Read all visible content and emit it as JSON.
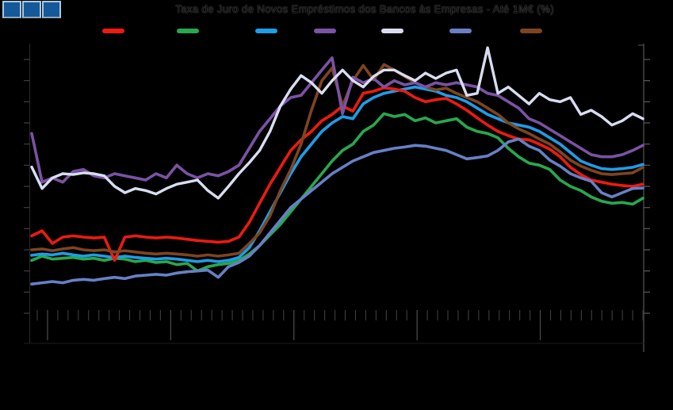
{
  "title": "Taxa de Juro de Novos Empréstimos dos Bancos às Empresas - Até 1M€ (%)",
  "logo": {
    "square_count": 3,
    "fill": "#15599B",
    "border": "#ADC8DF"
  },
  "legend": {
    "labels_visible": false,
    "items": [
      {
        "label": "",
        "color": "#EE1A10",
        "color_name": "red",
        "x": 129
      },
      {
        "label": "",
        "color": "#27A84F",
        "color_name": "green",
        "x": 223
      },
      {
        "label": "",
        "color": "#1E9DE8",
        "color_name": "cyan",
        "x": 322
      },
      {
        "label": "",
        "color": "#7B52A5",
        "color_name": "purple",
        "x": 396
      },
      {
        "label": "",
        "color": "#D8DEF0",
        "color_name": "lavender",
        "x": 481
      },
      {
        "label": "",
        "color": "#6780C6",
        "color_name": "steel",
        "x": 567
      },
      {
        "label": "",
        "color": "#7E4420",
        "color_name": "brown",
        "x": 656
      }
    ]
  },
  "chart_data": {
    "type": "line",
    "title": "Taxa de Juro de Novos Empréstimos dos Bancos às Empresas - Até 1M€ (%)",
    "n_points": 60,
    "x_axis": {
      "minor_tick_every_points": 1,
      "major_tick_every_points": 12,
      "first_major_point": 1,
      "tick_labels_visible": false
    },
    "y_axis": {
      "min": 1.0,
      "max": 7.5,
      "tick_step": 0.5,
      "tick_labels_visible": false
    },
    "grid": false,
    "legend_position": "top",
    "series": [
      {
        "name": "",
        "color_name": "green",
        "color": "#27A84F",
        "values": [
          2.25,
          2.35,
          2.28,
          2.3,
          2.32,
          2.28,
          2.3,
          2.25,
          2.3,
          2.28,
          2.22,
          2.25,
          2.2,
          2.22,
          2.15,
          2.18,
          2.0,
          2.1,
          2.15,
          2.18,
          2.25,
          2.4,
          2.6,
          2.85,
          3.1,
          3.4,
          3.7,
          4.0,
          4.3,
          4.6,
          4.85,
          5.0,
          5.3,
          5.45,
          5.72,
          5.65,
          5.7,
          5.55,
          5.62,
          5.5,
          5.55,
          5.6,
          5.4,
          5.3,
          5.25,
          5.15,
          4.9,
          4.7,
          4.55,
          4.5,
          4.4,
          4.15,
          4.0,
          3.9,
          3.75,
          3.65,
          3.6,
          3.62,
          3.58,
          3.72
        ]
      },
      {
        "name": "",
        "color_name": "cyan",
        "color": "#1E9DE8",
        "values": [
          2.37,
          2.4,
          2.38,
          2.42,
          2.38,
          2.35,
          2.38,
          2.35,
          2.32,
          2.35,
          2.32,
          2.3,
          2.28,
          2.3,
          2.28,
          2.25,
          2.22,
          2.25,
          2.22,
          2.25,
          2.32,
          2.55,
          2.95,
          3.4,
          3.85,
          4.3,
          4.7,
          5.0,
          5.3,
          5.5,
          5.65,
          5.6,
          5.95,
          6.1,
          6.2,
          6.25,
          6.3,
          6.35,
          6.3,
          6.25,
          6.15,
          6.1,
          6.0,
          5.85,
          5.7,
          5.6,
          5.5,
          5.45,
          5.4,
          5.3,
          5.15,
          5.0,
          4.8,
          4.6,
          4.5,
          4.42,
          4.4,
          4.42,
          4.45,
          4.52
        ]
      },
      {
        "name": "",
        "color_name": "red",
        "color": "#EE1A10",
        "values": [
          2.83,
          2.95,
          2.65,
          2.8,
          2.83,
          2.8,
          2.78,
          2.8,
          2.25,
          2.8,
          2.83,
          2.8,
          2.78,
          2.8,
          2.78,
          2.75,
          2.72,
          2.7,
          2.68,
          2.7,
          2.8,
          3.15,
          3.6,
          4.05,
          4.45,
          4.85,
          5.1,
          5.3,
          5.55,
          5.7,
          5.9,
          5.78,
          6.2,
          6.25,
          6.33,
          6.3,
          6.25,
          6.1,
          6.0,
          6.05,
          6.08,
          5.95,
          5.8,
          5.62,
          5.45,
          5.3,
          5.2,
          5.12,
          5.1,
          5.0,
          4.88,
          4.7,
          4.45,
          4.28,
          4.15,
          4.1,
          4.05,
          4.02,
          4.0,
          4.05
        ]
      },
      {
        "name": "",
        "color_name": "brown",
        "color": "#7E4420",
        "values": [
          2.5,
          2.52,
          2.48,
          2.52,
          2.55,
          2.5,
          2.48,
          2.5,
          2.45,
          2.48,
          2.45,
          2.42,
          2.4,
          2.42,
          2.4,
          2.38,
          2.35,
          2.38,
          2.35,
          2.38,
          2.42,
          2.65,
          2.9,
          3.3,
          3.9,
          4.4,
          5.0,
          5.8,
          6.5,
          6.8,
          5.9,
          6.5,
          6.86,
          6.52,
          6.88,
          6.75,
          6.6,
          6.45,
          6.35,
          6.28,
          6.32,
          6.2,
          6.1,
          6.0,
          5.85,
          5.7,
          5.5,
          5.36,
          5.25,
          5.12,
          5.0,
          4.82,
          4.62,
          4.48,
          4.38,
          4.3,
          4.28,
          4.3,
          4.32,
          4.45
        ]
      },
      {
        "name": "",
        "color_name": "steel",
        "color": "#6780C6",
        "values": [
          1.69,
          1.72,
          1.75,
          1.72,
          1.78,
          1.8,
          1.78,
          1.82,
          1.85,
          1.82,
          1.88,
          1.9,
          1.92,
          1.9,
          1.95,
          1.98,
          2.0,
          2.02,
          1.85,
          2.1,
          2.2,
          2.35,
          2.6,
          2.9,
          3.2,
          3.5,
          3.7,
          3.9,
          4.1,
          4.3,
          4.45,
          4.6,
          4.7,
          4.8,
          4.85,
          4.9,
          4.93,
          4.97,
          4.95,
          4.9,
          4.85,
          4.75,
          4.65,
          4.68,
          4.72,
          4.85,
          5.05,
          5.12,
          4.95,
          4.85,
          4.62,
          4.48,
          4.3,
          4.2,
          4.12,
          3.85,
          3.75,
          3.85,
          3.95,
          3.96
        ]
      },
      {
        "name": "",
        "color_name": "purple",
        "color": "#7B52A5",
        "values": [
          5.25,
          4.1,
          4.2,
          4.1,
          4.35,
          4.4,
          4.25,
          4.2,
          4.3,
          4.25,
          4.2,
          4.15,
          4.3,
          4.2,
          4.5,
          4.3,
          4.2,
          4.3,
          4.25,
          4.35,
          4.5,
          4.9,
          5.3,
          5.6,
          5.9,
          6.1,
          6.15,
          6.45,
          6.75,
          7.04,
          5.72,
          6.58,
          6.45,
          6.55,
          6.35,
          6.5,
          6.4,
          6.45,
          6.35,
          6.45,
          6.4,
          6.45,
          6.4,
          6.35,
          6.2,
          6.15,
          6.0,
          5.85,
          5.6,
          5.5,
          5.35,
          5.2,
          5.05,
          4.9,
          4.75,
          4.7,
          4.7,
          4.75,
          4.85,
          4.97
        ]
      },
      {
        "name": "",
        "color_name": "lavender",
        "color": "#D8DEF0",
        "values": [
          4.46,
          3.95,
          4.2,
          4.3,
          4.28,
          4.32,
          4.3,
          4.25,
          4.0,
          3.85,
          3.95,
          3.9,
          3.82,
          3.95,
          4.05,
          4.1,
          4.15,
          3.9,
          3.72,
          4.0,
          4.3,
          4.56,
          4.85,
          5.3,
          5.9,
          6.3,
          6.62,
          6.45,
          6.2,
          6.5,
          6.75,
          6.5,
          6.35,
          6.6,
          6.75,
          6.75,
          6.62,
          6.5,
          6.68,
          6.55,
          6.68,
          6.75,
          6.15,
          6.2,
          7.28,
          6.2,
          6.35,
          6.15,
          5.95,
          6.2,
          6.05,
          6.0,
          6.1,
          5.7,
          5.8,
          5.65,
          5.45,
          5.55,
          5.72,
          5.6
        ]
      }
    ]
  }
}
